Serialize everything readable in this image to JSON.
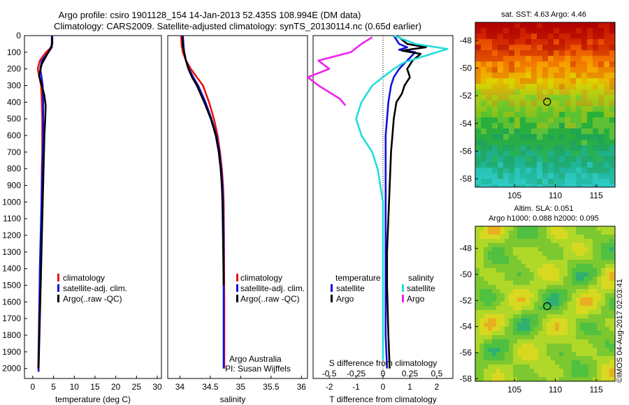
{
  "header": {
    "title_line1": "Argo profile: csiro 1901128_154 14-Jan-2013 52.435S 108.994E (DM data)",
    "title_line2": "Climatology: CARS2009. Satellite-adjusted climatology: synTS_20130114.nc (0.65d earlier)"
  },
  "credits": {
    "argo_australia": "Argo Australia",
    "pi": "PI: Susan Wijffels",
    "imos_stamp": "©IMOS 04-Aug-2017 02:03:41"
  },
  "colors": {
    "climatology": "#ee1111",
    "satellite": "#1111dd",
    "argo": "#000000",
    "sal_satellite": "#22dddd",
    "sal_argo": "#ee22ee"
  },
  "chart_data": [
    {
      "type": "line",
      "id": "temperature",
      "xlabel": "temperature (deg C)",
      "ylabel": "",
      "xlim": [
        -2,
        31
      ],
      "ylim": [
        2060,
        0
      ],
      "xticks": [
        0,
        5,
        10,
        15,
        20,
        25,
        30
      ],
      "yticks": [
        0,
        100,
        200,
        300,
        400,
        500,
        600,
        700,
        800,
        900,
        1000,
        1100,
        1200,
        1300,
        1400,
        1500,
        1600,
        1700,
        1800,
        1900,
        2000
      ],
      "legend": [
        "climatology",
        "satellite-adj. clim.",
        "Argo(..raw -QC)"
      ],
      "series": [
        {
          "name": "climatology",
          "color": "#ee1111",
          "x": [
            4.6,
            4.6,
            4.5,
            3.2,
            1.7,
            1.2,
            1.6,
            2.0,
            2.2,
            2.3,
            2.3,
            2.3,
            2.2,
            2.1,
            2.0,
            1.9,
            1.8,
            1.7,
            1.6,
            1.5,
            1.4,
            1.3
          ],
          "y": [
            0,
            40,
            70,
            100,
            150,
            200,
            250,
            300,
            400,
            500,
            600,
            700,
            800,
            1000,
            1200,
            1300,
            1400,
            1500,
            1600,
            1700,
            1900,
            2000
          ]
        },
        {
          "name": "satellite-adj. clim.",
          "color": "#1111dd",
          "x": [
            4.6,
            4.6,
            4.6,
            3.8,
            2.2,
            1.8,
            2.1,
            2.4,
            2.5,
            2.5,
            2.5,
            2.4,
            2.3,
            2.2,
            2.1,
            2.0,
            1.9,
            1.8,
            1.7,
            1.6,
            1.5,
            1.4,
            1.4
          ],
          "y": [
            0,
            40,
            70,
            100,
            150,
            200,
            250,
            300,
            400,
            500,
            600,
            700,
            800,
            900,
            1000,
            1100,
            1200,
            1300,
            1400,
            1600,
            1800,
            1900,
            2020
          ]
        },
        {
          "name": "Argo(..raw -QC)",
          "color": "#000000",
          "x": [
            4.7,
            4.7,
            4.2,
            3.5,
            2.2,
            1.5,
            2.2,
            2.8,
            3.1,
            3.0,
            2.8,
            2.6,
            2.4,
            2.2,
            2.0,
            1.8,
            1.6,
            1.5,
            1.4
          ],
          "y": [
            5,
            50,
            80,
            110,
            170,
            240,
            300,
            360,
            420,
            500,
            600,
            800,
            1000,
            1200,
            1400,
            1600,
            1800,
            1900,
            2000
          ]
        }
      ]
    },
    {
      "type": "line",
      "id": "salinity",
      "xlabel": "salinity",
      "ylabel": "",
      "xlim": [
        33.8,
        36.1
      ],
      "ylim": [
        2060,
        0
      ],
      "xticks": [
        34,
        34.5,
        35,
        35.5,
        36
      ],
      "xtick_labels": [
        "34",
        "34.5",
        "35",
        "35.5",
        "36"
      ],
      "legend": [
        "climatology",
        "satellite-adj. clim.",
        "Argo(..raw -QC)"
      ],
      "series": [
        {
          "name": "climatology",
          "color": "#ee1111",
          "x": [
            34.02,
            34.03,
            34.05,
            34.1,
            34.18,
            34.28,
            34.38,
            34.48,
            34.56,
            34.62,
            34.66,
            34.69,
            34.71,
            34.72,
            34.725,
            34.73,
            34.73
          ],
          "y": [
            0,
            60,
            100,
            150,
            200,
            250,
            300,
            400,
            500,
            600,
            700,
            800,
            900,
            1000,
            1200,
            1600,
            2000
          ]
        },
        {
          "name": "satellite-adj. clim.",
          "color": "#1111dd",
          "x": [
            34.05,
            34.06,
            34.07,
            34.1,
            34.15,
            34.22,
            34.3,
            34.42,
            34.52,
            34.6,
            34.65,
            34.68,
            34.7,
            34.71,
            34.72,
            34.72,
            34.72
          ],
          "y": [
            0,
            60,
            100,
            150,
            200,
            250,
            300,
            400,
            500,
            600,
            700,
            800,
            900,
            1000,
            1200,
            1600,
            2000
          ]
        },
        {
          "name": "Argo(..raw -QC)",
          "color": "#000000",
          "x": [
            34.04,
            34.05,
            34.07,
            34.1,
            34.14,
            34.2,
            34.28,
            34.4,
            34.51,
            34.59,
            34.64,
            34.67,
            34.69,
            34.7,
            34.71,
            34.72
          ],
          "y": [
            5,
            60,
            100,
            150,
            200,
            250,
            300,
            400,
            500,
            600,
            700,
            800,
            900,
            1000,
            1200,
            1500
          ]
        }
      ]
    },
    {
      "type": "line",
      "id": "differences",
      "xlabel": "T difference from climatology",
      "top_xlabel": "S difference from climatology",
      "ylabel": "",
      "xlim": [
        -2.6,
        2.6
      ],
      "ylim": [
        2060,
        0
      ],
      "xticks": [
        -2,
        -1,
        0,
        1,
        2
      ],
      "sal_xticks": [
        -0.5,
        -0.25,
        0,
        0.25,
        0.5
      ],
      "sal_xtick_labels": [
        "-0.5",
        "-0.25",
        "0",
        "0.25",
        "0.5"
      ],
      "legend_temperature_header": "temperature",
      "legend_salinity_header": "salinity",
      "legend": [
        "satellite",
        "Argo",
        "satellite",
        "Argo"
      ],
      "series": [
        {
          "name": "satellite",
          "group": "temperature",
          "color": "#1111dd",
          "x": [
            0.4,
            0.6,
            0.9,
            0.6,
            1.2,
            0.9,
            0.6,
            0.4,
            0.3,
            0.2,
            0.15,
            0.1,
            0.1,
            0.1,
            0.1,
            0.1,
            0.1,
            0.1,
            0.15
          ],
          "y": [
            0,
            50,
            70,
            85,
            100,
            150,
            200,
            250,
            300,
            400,
            500,
            600,
            800,
            1000,
            1200,
            1400,
            1600,
            1800,
            2000
          ]
        },
        {
          "name": "Argo",
          "group": "temperature",
          "color": "#000000",
          "x": [
            0.6,
            0.9,
            1.6,
            0.7,
            1.4,
            1.1,
            0.9,
            1.0,
            0.8,
            0.7,
            0.5,
            0.4,
            0.35,
            0.3,
            0.25,
            0.2,
            0.15,
            0.15,
            0.2,
            0.25
          ],
          "y": [
            10,
            50,
            70,
            90,
            110,
            150,
            200,
            250,
            300,
            350,
            400,
            500,
            600,
            700,
            900,
            1100,
            1300,
            1500,
            1800,
            2000
          ]
        },
        {
          "name": "satellite",
          "group": "salinity",
          "color": "#22dddd",
          "x": [
            0.1,
            0.3,
            0.6,
            0.4,
            0.2,
            0.1,
            -0.1,
            -0.2,
            -0.25,
            -0.2,
            -0.1,
            -0.05,
            0.0,
            0.0,
            0.0,
            0.0
          ],
          "y": [
            0,
            50,
            80,
            120,
            160,
            200,
            300,
            400,
            500,
            600,
            700,
            800,
            1000,
            1300,
            1600,
            1950
          ]
        },
        {
          "name": "Argo",
          "group": "salinity",
          "color": "#ee22ee",
          "x": [
            -0.1,
            -0.2,
            -0.3,
            -0.6,
            -0.5,
            -0.7,
            -0.6,
            -0.4,
            -0.35
          ],
          "y": [
            10,
            50,
            100,
            150,
            200,
            250,
            300,
            380,
            420
          ]
        }
      ]
    },
    {
      "type": "heatmap",
      "id": "sst-map",
      "title": "sat. SST: 4.63 Argo: 4.46",
      "xlim": [
        100.2,
        117.3
      ],
      "ylim": [
        -58.6,
        -46.7
      ],
      "xticks": [
        105,
        110,
        115
      ],
      "yticks": [
        -48,
        -50,
        -52,
        -54,
        -56,
        -58
      ],
      "marker": {
        "lon": 108.994,
        "lat": -52.435
      }
    },
    {
      "type": "heatmap",
      "id": "sla-map",
      "title_line1": "Altim. SLA: 0.051",
      "title_line2": "Argo h1000: 0.088 h2000: 0.095",
      "xlim": [
        100.2,
        117.3
      ],
      "ylim": [
        -58.2,
        -46.3
      ],
      "xticks": [
        105,
        110,
        115
      ],
      "yticks": [
        -48,
        -50,
        -52,
        -54,
        -56,
        -58
      ],
      "marker": {
        "lon": 108.994,
        "lat": -52.435
      }
    }
  ]
}
